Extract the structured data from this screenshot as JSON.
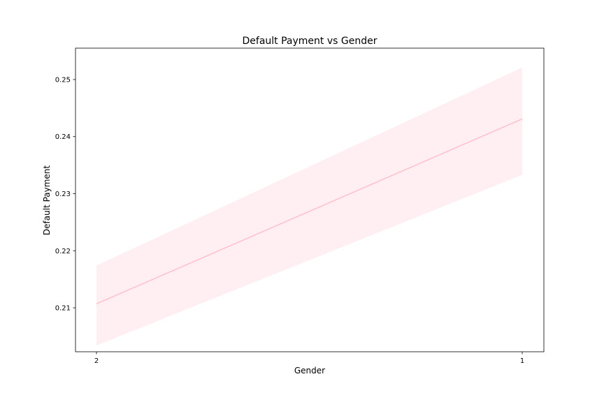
{
  "chart_data": {
    "type": "line",
    "title": "Default Payment vs Gender",
    "xlabel": "Gender",
    "ylabel": "Default Payment",
    "categories": [
      "2",
      "1"
    ],
    "series": [
      {
        "values": [
          0.2107,
          0.2431
        ],
        "ci_lower": [
          0.2034,
          0.2333
        ],
        "ci_upper": [
          0.2174,
          0.2521
        ],
        "color": "#ffc0cb"
      }
    ],
    "yticks": [
      "0.21",
      "0.22",
      "0.23",
      "0.24",
      "0.25"
    ],
    "ylim": [
      0.2023,
      0.2555
    ],
    "grid": false,
    "legend": false
  }
}
